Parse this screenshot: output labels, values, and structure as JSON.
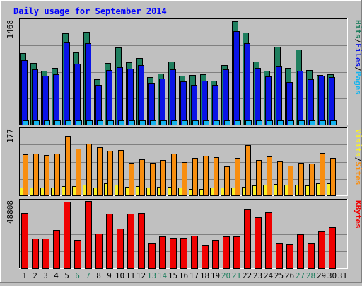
{
  "chart_data": [
    {
      "type": "bar",
      "title": "Daily usage for September 2014",
      "categories": [
        "1",
        "2",
        "3",
        "4",
        "5",
        "6",
        "7",
        "8",
        "9",
        "10",
        "11",
        "12",
        "13",
        "14",
        "15",
        "16",
        "17",
        "18",
        "19",
        "20",
        "21",
        "22",
        "23",
        "24",
        "25",
        "26",
        "27",
        "28",
        "29",
        "30",
        "31"
      ],
      "weekend_days": [
        "6",
        "7",
        "13",
        "14",
        "20",
        "21",
        "27",
        "28"
      ],
      "max_label": "1468",
      "ylim": [
        0,
        1468
      ],
      "series": [
        {
          "name": "Hits",
          "color": "#1f7f5f",
          "values": [
            1010,
            870,
            760,
            800,
            1290,
            1020,
            1310,
            640,
            870,
            1090,
            880,
            940,
            670,
            720,
            890,
            690,
            700,
            710,
            620,
            840,
            1460,
            1300,
            890,
            760,
            1100,
            800,
            1060,
            770,
            700,
            710,
            0
          ]
        },
        {
          "name": "Files",
          "color": "#0a14e6",
          "values": [
            910,
            780,
            690,
            710,
            1160,
            860,
            1150,
            560,
            770,
            810,
            790,
            840,
            590,
            650,
            780,
            610,
            560,
            620,
            560,
            780,
            1320,
            1150,
            800,
            680,
            830,
            600,
            760,
            640,
            690,
            670,
            0
          ]
        },
        {
          "name": "Pages",
          "color": "#14b4ee",
          "values": [
            55,
            55,
            55,
            55,
            55,
            55,
            55,
            55,
            55,
            55,
            55,
            55,
            55,
            55,
            55,
            55,
            55,
            55,
            55,
            55,
            55,
            55,
            55,
            55,
            55,
            55,
            55,
            55,
            55,
            55,
            0
          ]
        }
      ],
      "y_label_parts": [
        "Pages",
        "Files",
        "Hits"
      ]
    },
    {
      "type": "bar",
      "categories": [
        "1",
        "2",
        "3",
        "4",
        "5",
        "6",
        "7",
        "8",
        "9",
        "10",
        "11",
        "12",
        "13",
        "14",
        "15",
        "16",
        "17",
        "18",
        "19",
        "20",
        "21",
        "22",
        "23",
        "24",
        "25",
        "26",
        "27",
        "28",
        "29",
        "30",
        "31"
      ],
      "max_label": "177",
      "ylim": [
        0,
        177
      ],
      "series": [
        {
          "name": "Visits",
          "color": "#f8f028",
          "values": [
            20,
            20,
            20,
            20,
            24,
            24,
            28,
            20,
            32,
            28,
            22,
            24,
            20,
            22,
            22,
            20,
            18,
            18,
            20,
            20,
            20,
            22,
            26,
            28,
            30,
            28,
            28,
            26,
            32,
            32,
            0
          ]
        },
        {
          "name": "Sites",
          "color": "#f88e10",
          "values": [
            110,
            112,
            108,
            113,
            160,
            126,
            138,
            130,
            120,
            122,
            88,
            98,
            88,
            95,
            112,
            90,
            100,
            106,
            102,
            78,
            100,
            136,
            96,
            104,
            92,
            80,
            88,
            86,
            115,
            100,
            0
          ]
        }
      ],
      "y_label_parts": [
        "Sites",
        "Visits"
      ]
    },
    {
      "type": "bar",
      "categories": [
        "1",
        "2",
        "3",
        "4",
        "5",
        "6",
        "7",
        "8",
        "9",
        "10",
        "11",
        "12",
        "13",
        "14",
        "15",
        "16",
        "17",
        "18",
        "19",
        "20",
        "21",
        "22",
        "23",
        "24",
        "25",
        "26",
        "27",
        "28",
        "29",
        "30",
        "31"
      ],
      "max_label": "48808",
      "ylim": [
        0,
        48808
      ],
      "series": [
        {
          "name": "KBytes",
          "color": "#f00000",
          "values": [
            40300,
            21400,
            21400,
            27800,
            48300,
            20600,
            48800,
            25400,
            39500,
            28800,
            39800,
            39900,
            18600,
            22900,
            22000,
            22000,
            23400,
            17200,
            20700,
            23100,
            23000,
            42900,
            36800,
            40700,
            18300,
            17400,
            24500,
            18600,
            26700,
            29700,
            0
          ]
        }
      ],
      "y_label_parts": [
        "KBytes"
      ]
    }
  ]
}
